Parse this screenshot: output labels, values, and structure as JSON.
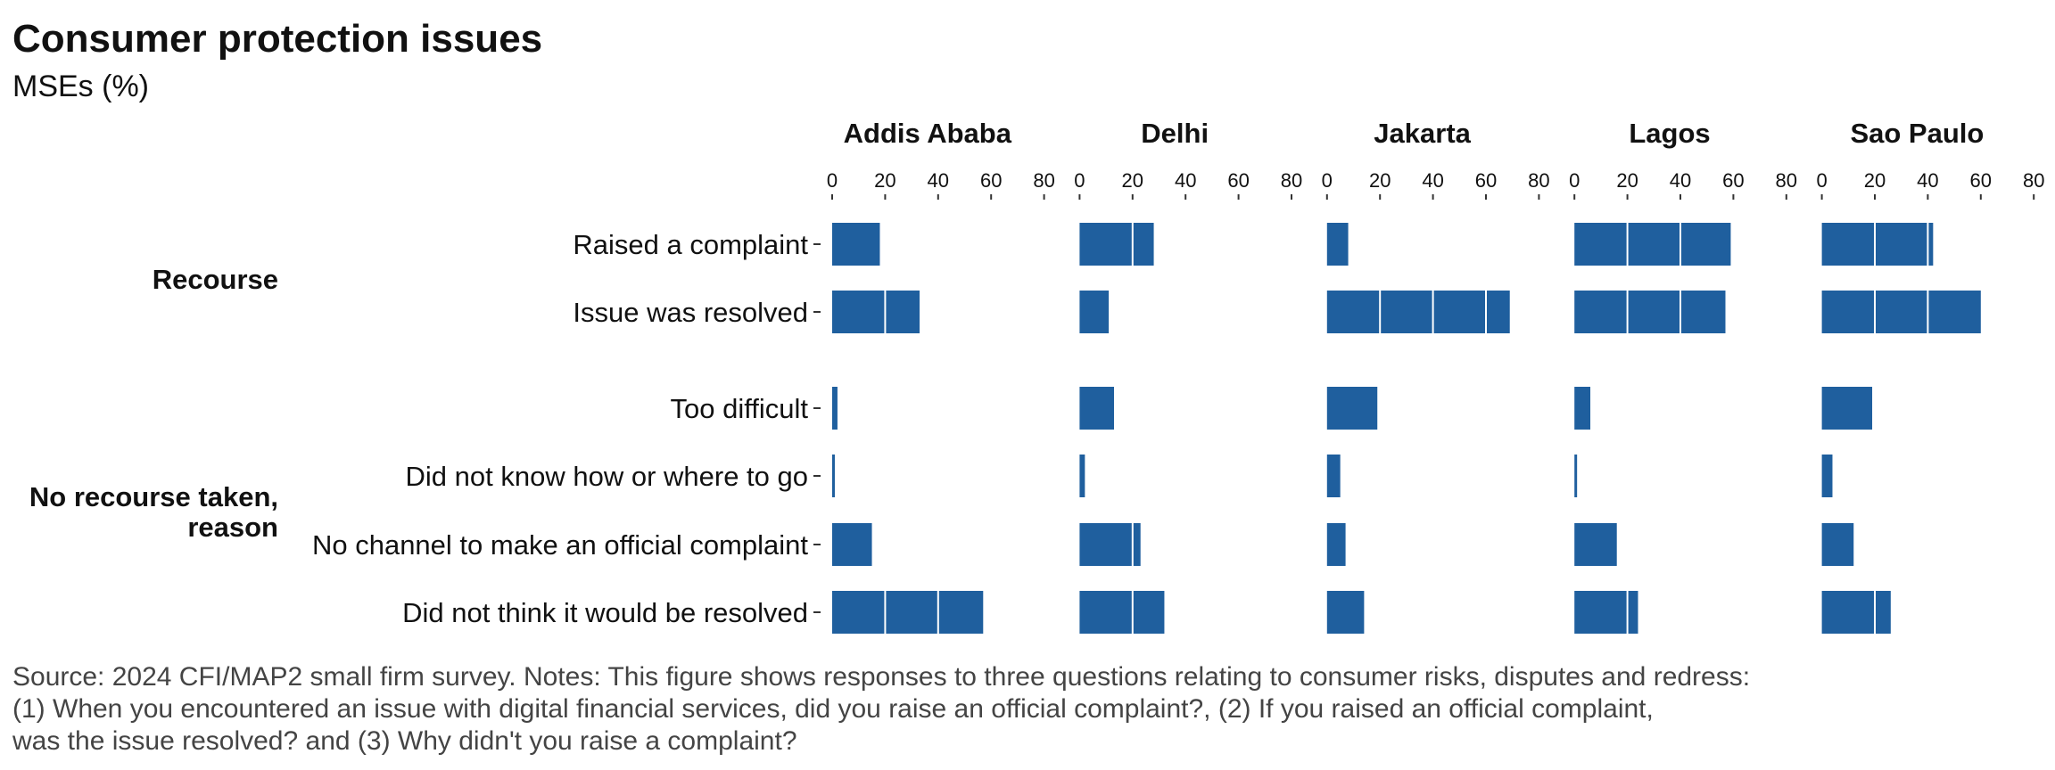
{
  "header": {
    "title": "Consumer protection issues",
    "subtitle": "MSEs (%)"
  },
  "footnote": {
    "line1": "Source: 2024 CFI/MAP2 small firm survey. Notes: This figure shows responses to three questions relating to consumer risks, disputes and redress:",
    "line2": "(1) When you encountered an issue with digital financial services, did you raise an official complaint?, (2) If you raised an official complaint,",
    "line3": "was the issue resolved? and (3) Why didn't you raise a complaint?"
  },
  "chart_data": {
    "type": "bar",
    "orientation": "horizontal",
    "facets": [
      "Addis Ababa",
      "Delhi",
      "Jakarta",
      "Lagos",
      "Sao Paulo"
    ],
    "groups": [
      {
        "label": "Recourse",
        "categories": [
          "Raised a complaint",
          "Issue was resolved"
        ]
      },
      {
        "label": "No recourse taken, reason",
        "categories": [
          "Too difficult",
          "Did not know how or where to go",
          "No channel to make an official complaint",
          "Did not think it would be resolved"
        ]
      }
    ],
    "xlim": [
      0,
      80
    ],
    "xticks": [
      0,
      20,
      40,
      60,
      80
    ],
    "grid": false,
    "bar_color": "#1f5f9e",
    "values": {
      "Addis Ababa": [
        18,
        33,
        2,
        1,
        15,
        57
      ],
      "Delhi": [
        28,
        11,
        13,
        2,
        23,
        32
      ],
      "Jakarta": [
        8,
        69,
        19,
        5,
        7,
        14
      ],
      "Lagos": [
        59,
        57,
        6,
        1,
        16,
        24
      ],
      "Sao Paulo": [
        42,
        60,
        19,
        4,
        12,
        26
      ]
    }
  }
}
